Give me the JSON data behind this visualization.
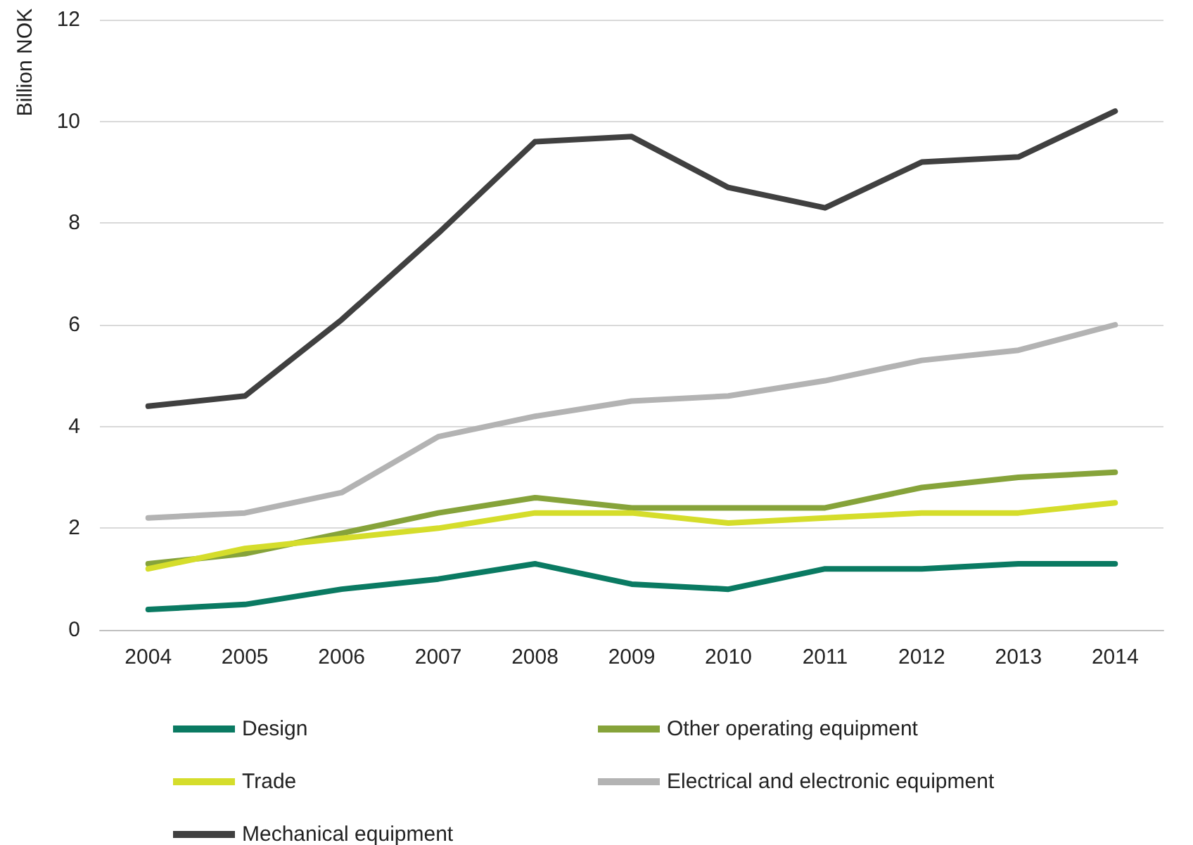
{
  "chart_data": {
    "type": "line",
    "ylabel": "Billion NOK",
    "categories": [
      "2004",
      "2005",
      "2006",
      "2007",
      "2008",
      "2009",
      "2010",
      "2011",
      "2012",
      "2013",
      "2014"
    ],
    "series": [
      {
        "name": "Design",
        "color": "#0a7a62",
        "values": [
          0.4,
          0.5,
          0.8,
          1.0,
          1.3,
          0.9,
          0.8,
          1.2,
          1.2,
          1.3,
          1.3
        ]
      },
      {
        "name": "Other operating equipment",
        "color": "#86a33a",
        "values": [
          1.3,
          1.5,
          1.9,
          2.3,
          2.6,
          2.4,
          2.4,
          2.4,
          2.8,
          3.0,
          3.1
        ]
      },
      {
        "name": "Trade",
        "color": "#d5dd2b",
        "values": [
          1.2,
          1.6,
          1.8,
          2.0,
          2.3,
          2.3,
          2.1,
          2.2,
          2.3,
          2.3,
          2.5
        ]
      },
      {
        "name": "Electrical and electronic equipment",
        "color": "#b3b3b3",
        "values": [
          2.2,
          2.3,
          2.7,
          3.8,
          4.2,
          4.5,
          4.6,
          4.9,
          5.3,
          5.5,
          6.0
        ]
      },
      {
        "name": "Mechanical equipment",
        "color": "#404040",
        "values": [
          4.4,
          4.6,
          6.1,
          7.8,
          9.6,
          9.7,
          8.7,
          8.3,
          9.2,
          9.3,
          10.2
        ]
      }
    ],
    "ylim": [
      0,
      12
    ],
    "yticks": [
      0,
      2,
      4,
      6,
      8,
      10,
      12
    ],
    "grid": "y",
    "legend": "bottom",
    "marker": "none",
    "line_style": "solid"
  }
}
